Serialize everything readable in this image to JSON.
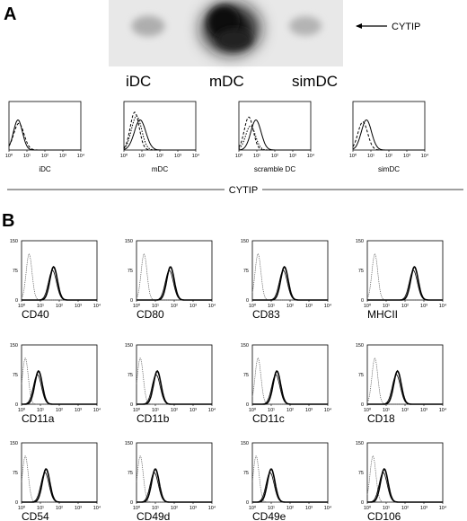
{
  "panel_a": {
    "letter": "A",
    "blot": {
      "band_label": "CYTIP",
      "lanes": [
        "iDC",
        "mDC",
        "simDC"
      ],
      "lane_intensity": [
        0.25,
        1.0,
        0.22
      ]
    },
    "histograms": [
      {
        "label": "iDC"
      },
      {
        "label": "mDC"
      },
      {
        "label": "scramble DC"
      },
      {
        "label": "simDC"
      }
    ],
    "x_ticks": [
      "10⁰",
      "10¹",
      "10²",
      "10³",
      "10⁴"
    ],
    "axis_title": "CYTIP"
  },
  "panel_b": {
    "letter": "B",
    "y_ticks": [
      "150",
      "75",
      "0"
    ],
    "x_ticks": [
      "10⁰",
      "10¹",
      "10²",
      "10³",
      "10⁴"
    ],
    "markers": [
      {
        "label": "CD40",
        "isotype_log": 0.4,
        "stain_log": 1.7
      },
      {
        "label": "CD80",
        "isotype_log": 0.4,
        "stain_log": 1.8
      },
      {
        "label": "CD83",
        "isotype_log": 0.3,
        "stain_log": 1.7
      },
      {
        "label": "MHCII",
        "isotype_log": 0.4,
        "stain_log": 2.5
      },
      {
        "label": "CD11a",
        "isotype_log": 0.2,
        "stain_log": 0.9
      },
      {
        "label": "CD11b",
        "isotype_log": 0.2,
        "stain_log": 1.1
      },
      {
        "label": "CD11c",
        "isotype_log": 0.3,
        "stain_log": 1.3
      },
      {
        "label": "CD18",
        "isotype_log": 0.4,
        "stain_log": 1.6
      },
      {
        "label": "CD54",
        "isotype_log": 0.2,
        "stain_log": 1.3
      },
      {
        "label": "CD49d",
        "isotype_log": 0.2,
        "stain_log": 1.0
      },
      {
        "label": "CD49e",
        "isotype_log": 0.2,
        "stain_log": 1.0
      },
      {
        "label": "CD106",
        "isotype_log": 0.3,
        "stain_log": 0.9
      }
    ]
  }
}
